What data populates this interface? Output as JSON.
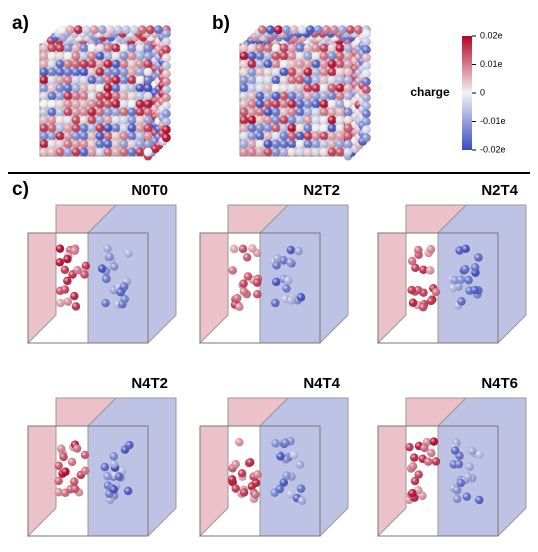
{
  "panels": {
    "a": "a)",
    "b": "b)",
    "c": "c)"
  },
  "colorbar": {
    "label": "charge",
    "lim": [
      -0.02,
      0.02
    ],
    "ticks": [
      {
        "value": 0.02,
        "label": "0.02e"
      },
      {
        "value": 0.01,
        "label": "0.01e"
      },
      0,
      {
        "value": -0.01,
        "label": "-0.01e"
      },
      {
        "value": -0.02,
        "label": "-0.02e"
      }
    ]
  },
  "structures": [
    "N0T0",
    "N2T2",
    "N2T4",
    "N4T2",
    "N4T4",
    "N4T6"
  ]
}
